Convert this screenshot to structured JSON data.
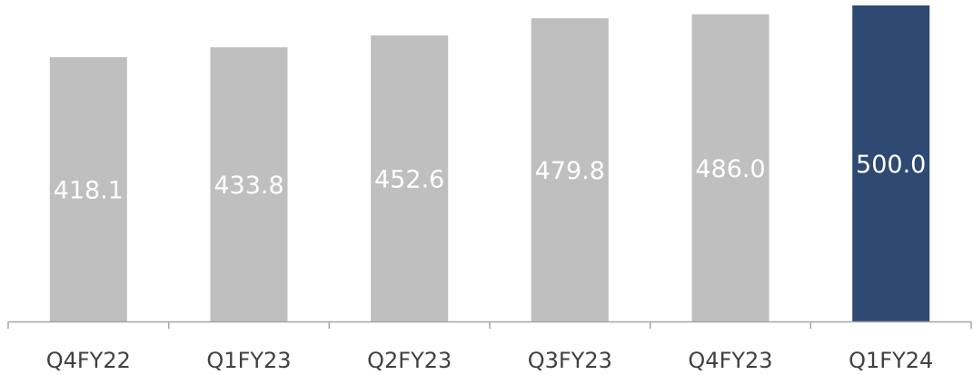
{
  "chart_data": {
    "type": "bar",
    "title": "",
    "xlabel": "",
    "ylabel": "",
    "categories": [
      "Q4FY22",
      "Q1FY23",
      "Q2FY23",
      "Q3FY23",
      "Q4FY23",
      "Q1FY24"
    ],
    "values": [
      418.1,
      433.8,
      452.6,
      479.8,
      486.0,
      500.0
    ],
    "value_labels": [
      "418.1",
      "433.8",
      "452.6",
      "479.8",
      "486.0",
      "500.0"
    ],
    "ylim": [
      0,
      500
    ],
    "grid": false,
    "legend": "none",
    "colors": {
      "default_bar": "#bfbfbf",
      "highlight_bar": "#2e4a72",
      "axis": "#a6a6a6",
      "value_text": "#ffffff",
      "category_text": "#404040"
    },
    "highlight_index": 5
  }
}
